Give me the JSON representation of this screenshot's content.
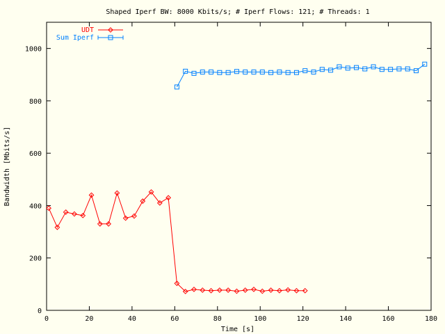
{
  "chart_data": {
    "type": "line",
    "title": "Shaped Iperf BW: 8000 Kbits/s; # Iperf Flows: 121; # Threads: 1",
    "xlabel": "Time [s]",
    "ylabel": "Bandwidth [Mbits/s]",
    "xlim": [
      0,
      180
    ],
    "ylim": [
      0,
      1100
    ],
    "xticks": [
      0,
      20,
      40,
      60,
      80,
      100,
      120,
      140,
      160,
      180
    ],
    "yticks": [
      0,
      200,
      400,
      600,
      800,
      1000
    ],
    "grid": false,
    "legend_position": "top-left",
    "series": [
      {
        "name": "UDT",
        "color": "#ff0000",
        "marker": "diamond",
        "x": [
          1,
          5,
          9,
          13,
          17,
          21,
          25,
          29,
          33,
          37,
          41,
          45,
          49,
          53,
          57,
          61,
          65,
          69,
          73,
          77,
          81,
          85,
          89,
          93,
          97,
          101,
          105,
          109,
          113,
          117,
          121
        ],
        "y": [
          390,
          317,
          375,
          368,
          362,
          440,
          330,
          330,
          448,
          352,
          360,
          417,
          452,
          410,
          430,
          103,
          72,
          80,
          77,
          75,
          77,
          77,
          73,
          77,
          80,
          73,
          77,
          75,
          78,
          75,
          75
        ]
      },
      {
        "name": "Sum Iperf",
        "color": "#0080ff",
        "marker": "square",
        "x": [
          61,
          65,
          69,
          73,
          77,
          81,
          85,
          89,
          93,
          97,
          101,
          105,
          109,
          113,
          117,
          121,
          125,
          129,
          133,
          137,
          141,
          145,
          149,
          153,
          157,
          161,
          165,
          169,
          173,
          177
        ],
        "y": [
          853,
          913,
          905,
          910,
          910,
          908,
          908,
          912,
          910,
          910,
          910,
          908,
          910,
          908,
          908,
          915,
          910,
          920,
          917,
          930,
          925,
          927,
          922,
          930,
          920,
          920,
          922,
          922,
          915,
          940
        ]
      }
    ]
  }
}
